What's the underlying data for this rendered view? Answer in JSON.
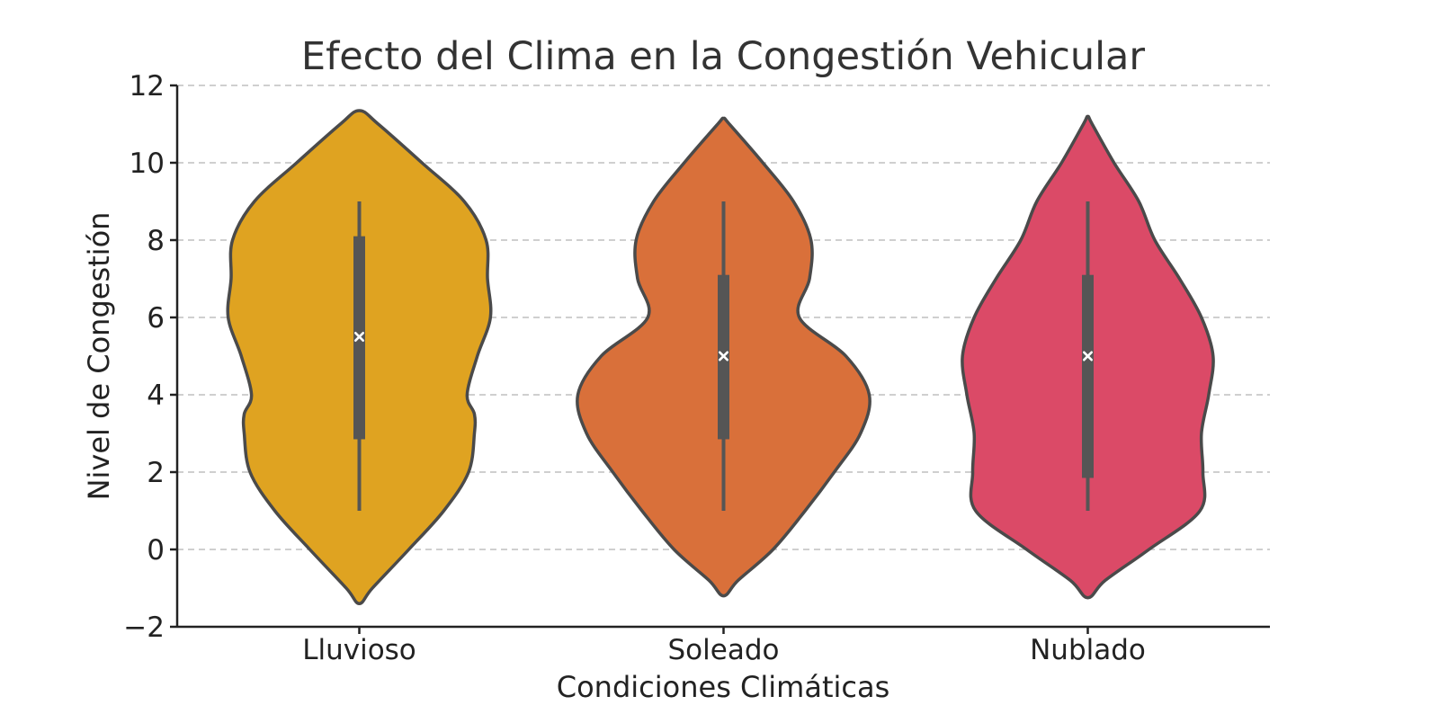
{
  "chart_data": {
    "type": "violin",
    "title": "Efecto del Clima en la Congestión Vehicular",
    "xlabel": "Condiciones Climáticas",
    "ylabel": "Nivel de Congestión",
    "ylim": [
      -2,
      12
    ],
    "yticks": [
      -2,
      0,
      2,
      4,
      6,
      8,
      10,
      12
    ],
    "ytick_labels": [
      "−2",
      "0",
      "2",
      "4",
      "6",
      "8",
      "10",
      "12"
    ],
    "grid": "y dashed",
    "categories": [
      "Lluvioso",
      "Soleado",
      "Nublado"
    ],
    "colors": [
      "#DFA321",
      "#D9703A",
      "#DB4A67"
    ],
    "outline_color": "#4a4a4a",
    "series": [
      {
        "category": "Lluvioso",
        "whisker_min": 1,
        "q1": 2.85,
        "median": 5.5,
        "q3": 8.1,
        "whisker_max": 9,
        "density": [
          [
            -1.4,
            0.0
          ],
          [
            -1.0,
            0.09
          ],
          [
            0.0,
            0.34
          ],
          [
            1.0,
            0.58
          ],
          [
            2.0,
            0.75
          ],
          [
            3.0,
            0.79
          ],
          [
            3.5,
            0.79
          ],
          [
            4.0,
            0.74
          ],
          [
            5.0,
            0.81
          ],
          [
            6.0,
            0.9
          ],
          [
            7.0,
            0.88
          ],
          [
            8.0,
            0.87
          ],
          [
            9.0,
            0.72
          ],
          [
            10.0,
            0.43
          ],
          [
            11.0,
            0.13
          ],
          [
            11.35,
            0.0
          ]
        ]
      },
      {
        "category": "Soleado",
        "whisker_min": 1,
        "q1": 2.85,
        "median": 5.0,
        "q3": 7.1,
        "whisker_max": 9,
        "density": [
          [
            -1.2,
            0.0
          ],
          [
            -0.8,
            0.1
          ],
          [
            0.0,
            0.34
          ],
          [
            1.0,
            0.56
          ],
          [
            2.0,
            0.76
          ],
          [
            3.0,
            0.94
          ],
          [
            4.0,
            1.0
          ],
          [
            5.0,
            0.84
          ],
          [
            6.0,
            0.52
          ],
          [
            7.0,
            0.59
          ],
          [
            8.0,
            0.6
          ],
          [
            9.0,
            0.48
          ],
          [
            10.0,
            0.27
          ],
          [
            11.0,
            0.04
          ],
          [
            11.15,
            0.0
          ]
        ]
      },
      {
        "category": "Nublado",
        "whisker_min": 1,
        "q1": 1.85,
        "median": 5.0,
        "q3": 7.1,
        "whisker_max": 9,
        "density": [
          [
            -1.25,
            0.0
          ],
          [
            -0.8,
            0.12
          ],
          [
            0.0,
            0.42
          ],
          [
            1.0,
            0.77
          ],
          [
            2.0,
            0.79
          ],
          [
            3.0,
            0.78
          ],
          [
            4.0,
            0.83
          ],
          [
            5.0,
            0.86
          ],
          [
            6.0,
            0.78
          ],
          [
            7.0,
            0.63
          ],
          [
            8.0,
            0.46
          ],
          [
            9.0,
            0.35
          ],
          [
            10.0,
            0.18
          ],
          [
            11.0,
            0.03
          ],
          [
            11.2,
            0.0
          ]
        ]
      }
    ]
  }
}
